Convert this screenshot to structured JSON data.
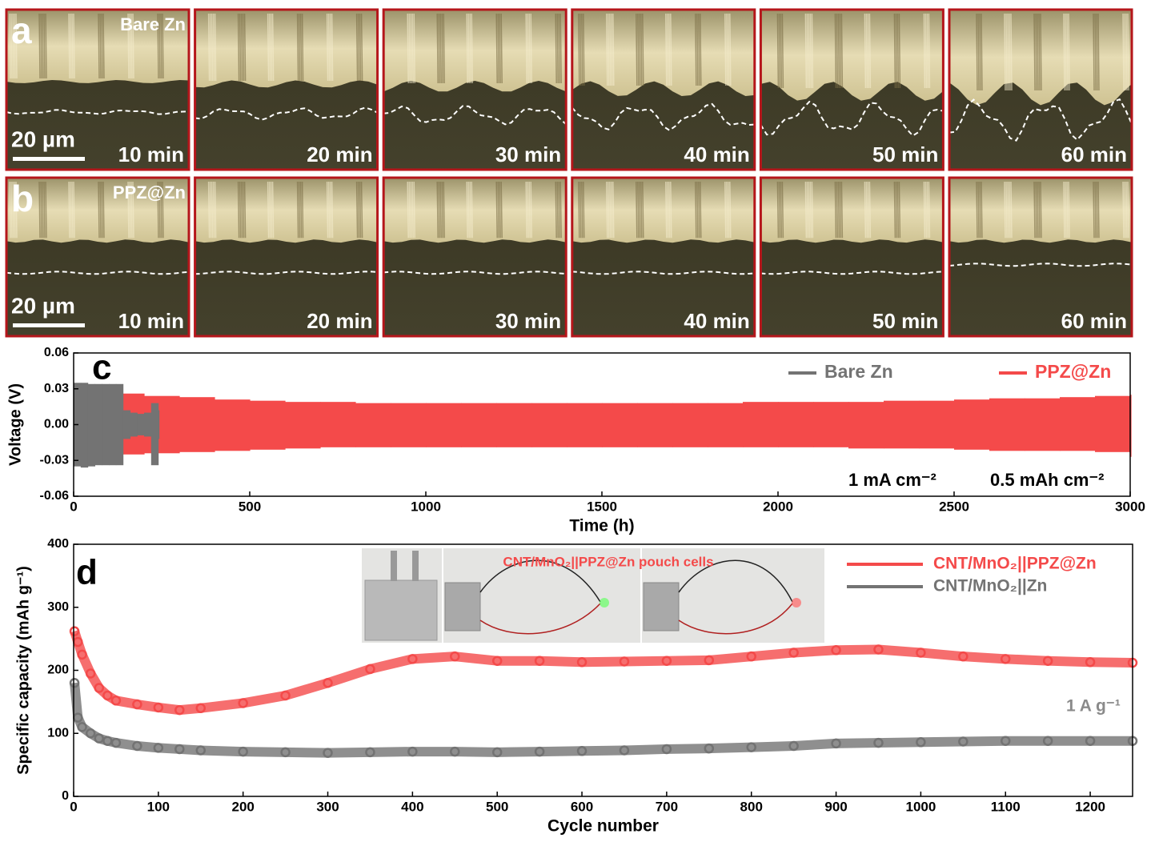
{
  "panel_a": {
    "label": "a",
    "sample": "Bare Zn",
    "scale_bar": "20 µm",
    "times": [
      "10 min",
      "20 min",
      "30 min",
      "40 min",
      "50 min",
      "60 min"
    ]
  },
  "panel_b": {
    "label": "b",
    "sample": "PPZ@Zn",
    "scale_bar": "20 µm",
    "times": [
      "10 min",
      "20 min",
      "30 min",
      "40 min",
      "50 min",
      "60 min"
    ]
  },
  "chart_data": [
    {
      "type": "band",
      "label": "c",
      "xlabel": "Time (h)",
      "ylabel": "Voltage (V)",
      "xlim": [
        0,
        3000
      ],
      "ylim": [
        -0.06,
        0.06
      ],
      "xticks": [
        0,
        500,
        1000,
        1500,
        2000,
        2500,
        3000
      ],
      "yticks": [
        0.06,
        0.03,
        {
          "value": 0,
          "label": "0.00"
        },
        -0.03,
        -0.06
      ],
      "annotations": [
        "1 mA cm⁻²",
        "0.5 mAh cm⁻²"
      ],
      "series": [
        {
          "name": "Bare Zn",
          "color": "#737373",
          "x": [
            0,
            20,
            40,
            60,
            80,
            100,
            120,
            140,
            160,
            180,
            200,
            220,
            240
          ],
          "upper": [
            0.035,
            0.035,
            0.034,
            0.034,
            0.034,
            0.034,
            0.034,
            0.012,
            0.01,
            0.009,
            0.01,
            0.018,
            0.012
          ],
          "lower": [
            -0.035,
            -0.036,
            -0.035,
            -0.034,
            -0.034,
            -0.034,
            -0.034,
            -0.012,
            -0.01,
            -0.009,
            -0.01,
            -0.034,
            -0.012
          ]
        },
        {
          "name": "PPZ@Zn",
          "color": "#f44a4a",
          "x": [
            0,
            100,
            200,
            300,
            400,
            500,
            600,
            700,
            800,
            900,
            1000,
            1100,
            1200,
            1300,
            1400,
            1500,
            1600,
            1700,
            1800,
            1900,
            2000,
            2100,
            2200,
            2300,
            2400,
            2500,
            2600,
            2700,
            2800,
            2900,
            3000
          ],
          "upper": [
            0.03,
            0.026,
            0.024,
            0.023,
            0.021,
            0.02,
            0.019,
            0.019,
            0.018,
            0.018,
            0.018,
            0.018,
            0.018,
            0.018,
            0.018,
            0.018,
            0.018,
            0.018,
            0.018,
            0.019,
            0.019,
            0.019,
            0.019,
            0.02,
            0.02,
            0.021,
            0.022,
            0.022,
            0.023,
            0.024,
            0.025
          ],
          "lower": [
            -0.028,
            -0.025,
            -0.024,
            -0.023,
            -0.022,
            -0.021,
            -0.02,
            -0.019,
            -0.019,
            -0.019,
            -0.019,
            -0.019,
            -0.019,
            -0.019,
            -0.019,
            -0.019,
            -0.019,
            -0.019,
            -0.019,
            -0.019,
            -0.019,
            -0.019,
            -0.02,
            -0.02,
            -0.02,
            -0.021,
            -0.022,
            -0.022,
            -0.022,
            -0.023,
            -0.027
          ]
        }
      ]
    },
    {
      "type": "line",
      "label": "d",
      "xlabel": "Cycle number",
      "ylabel": "Specific capacity (mAh g⁻¹)",
      "xlim": [
        0,
        1250
      ],
      "ylim": [
        0,
        400
      ],
      "xticks": [
        0,
        100,
        200,
        300,
        400,
        500,
        600,
        700,
        800,
        900,
        1000,
        1100,
        1200
      ],
      "yticks": [
        0,
        100,
        200,
        300,
        400
      ],
      "annotations": [
        "1 A g⁻¹",
        "CNT/MnO₂||PPZ@Zn pouch cells"
      ],
      "series": [
        {
          "name": "CNT/MnO₂||PPZ@Zn",
          "color": "#f44a4a",
          "x": [
            1,
            5,
            10,
            20,
            30,
            40,
            50,
            75,
            100,
            125,
            150,
            200,
            250,
            300,
            350,
            400,
            450,
            500,
            550,
            600,
            650,
            700,
            750,
            800,
            850,
            900,
            950,
            1000,
            1050,
            1100,
            1150,
            1200,
            1250
          ],
          "values": [
            262,
            245,
            225,
            195,
            172,
            160,
            152,
            146,
            141,
            137,
            140,
            148,
            160,
            180,
            202,
            218,
            222,
            215,
            215,
            213,
            214,
            215,
            216,
            222,
            228,
            232,
            233,
            228,
            222,
            218,
            215,
            213,
            212
          ]
        },
        {
          "name": "CNT/MnO₂||Zn",
          "color": "#737373",
          "x": [
            1,
            5,
            10,
            20,
            30,
            40,
            50,
            75,
            100,
            125,
            150,
            200,
            250,
            300,
            350,
            400,
            450,
            500,
            550,
            600,
            650,
            700,
            750,
            800,
            850,
            900,
            950,
            1000,
            1050,
            1100,
            1150,
            1200,
            1250
          ],
          "values": [
            180,
            125,
            110,
            100,
            92,
            88,
            85,
            80,
            77,
            75,
            73,
            71,
            70,
            69,
            70,
            71,
            71,
            70,
            71,
            72,
            73,
            75,
            76,
            78,
            80,
            84,
            85,
            86,
            87,
            88,
            88,
            88,
            88
          ]
        }
      ]
    }
  ]
}
